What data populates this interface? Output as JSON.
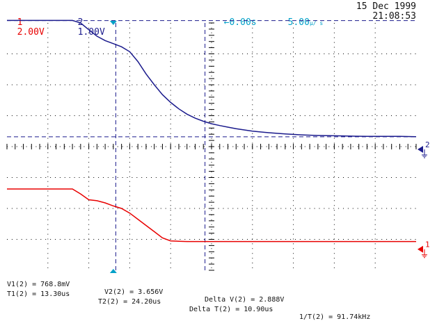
{
  "header": {
    "ch1_num": "1",
    "ch1_scale": "2.00V",
    "ch2_num": "2",
    "ch2_scale": "1.00V",
    "timebase_delay": "0.00s",
    "timebase_scale": "5.00",
    "timebase_unit": "μ/ s",
    "date": "15 Dec 1999",
    "time": "21:08:53"
  },
  "markers": {
    "ch1_marker_label": "1",
    "ch2_marker_label": "2"
  },
  "measurements": {
    "line1": [
      "V1(2) = 768.8mV",
      "V2(2) = 3.656V",
      "Delta V(2) = 2.888V"
    ],
    "line2": [
      "T1(2) = 13.30us",
      "T2(2) = 24.20us",
      "Delta T(2) = 10.90us",
      "1/T(2) = 91.74kHz"
    ]
  },
  "colors": {
    "ch1": "#e80000",
    "ch2": "#1a1a8c",
    "timebase": "#00a0c8",
    "grid": "#000000",
    "cursor": "#1a1a8c"
  },
  "chart_data": {
    "type": "line",
    "x_unit": "us",
    "x_range": [
      0,
      50
    ],
    "series": [
      {
        "name": "1",
        "volts_per_div": 2.0,
        "x": [
          0,
          1,
          2,
          3,
          4,
          5,
          6,
          7,
          8,
          9,
          10,
          11,
          12,
          13,
          14,
          15,
          16,
          17,
          18,
          19,
          20,
          21,
          22,
          23,
          24,
          25,
          26,
          27,
          28,
          29,
          30,
          35,
          40,
          45,
          50
        ],
        "y_div": [
          -1.37,
          -1.37,
          -1.37,
          -1.37,
          -1.37,
          -1.37,
          -1.37,
          -1.37,
          -1.37,
          -1.53,
          -1.72,
          -1.75,
          -1.82,
          -1.92,
          -2.0,
          -2.15,
          -2.35,
          -2.55,
          -2.75,
          -2.95,
          -3.05,
          -3.06,
          -3.07,
          -3.07,
          -3.07,
          -3.07,
          -3.07,
          -3.07,
          -3.07,
          -3.07,
          -3.07,
          -3.07,
          -3.07,
          -3.07,
          -3.07
        ]
      },
      {
        "name": "2",
        "volts_per_div": 1.0,
        "x": [
          0,
          2,
          4,
          6,
          8,
          9,
          10,
          11,
          12,
          13,
          14,
          15,
          16,
          17,
          18,
          19,
          20,
          21,
          22,
          23,
          24,
          25,
          26,
          27,
          28,
          29,
          30,
          32,
          34,
          36,
          38,
          40,
          42,
          44,
          46,
          48,
          50
        ],
        "y_div": [
          4.08,
          4.08,
          4.08,
          4.08,
          4.08,
          4.0,
          3.78,
          3.57,
          3.43,
          3.33,
          3.23,
          3.07,
          2.75,
          2.35,
          2.0,
          1.68,
          1.43,
          1.22,
          1.05,
          0.92,
          0.82,
          0.74,
          0.68,
          0.63,
          0.58,
          0.54,
          0.5,
          0.45,
          0.41,
          0.38,
          0.36,
          0.35,
          0.34,
          0.33,
          0.33,
          0.33,
          0.32
        ]
      }
    ]
  }
}
